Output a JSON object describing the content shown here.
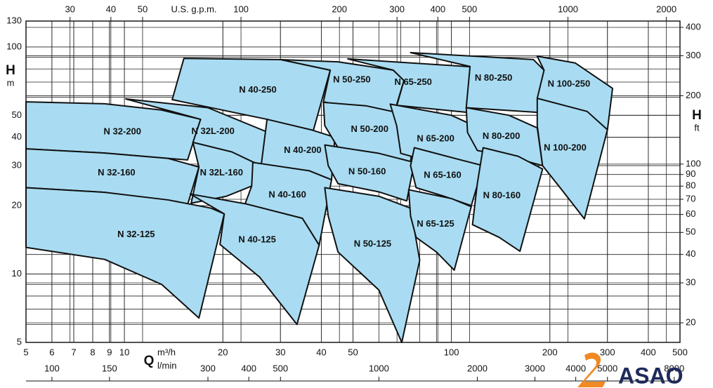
{
  "chart_data": {
    "type": "region",
    "log_scale": true,
    "grid": true,
    "minor_grid": true,
    "xlim": [
      5,
      500
    ],
    "xticks": [
      5,
      6,
      7,
      8,
      9,
      10,
      20,
      30,
      40,
      50,
      100,
      200,
      300,
      400,
      500
    ],
    "ylim": [
      5,
      130
    ],
    "yticks": [
      5,
      10,
      20,
      30,
      40,
      50,
      100,
      130
    ],
    "y2lim": [
      16.4,
      426.5
    ],
    "y2ticks": [
      20,
      30,
      40,
      50,
      60,
      70,
      80,
      90,
      100,
      200,
      300,
      400
    ],
    "x2lim": [
      22.0,
      2201
    ],
    "x2ticks": [
      30,
      40,
      50,
      100,
      200,
      300,
      400,
      500,
      1000,
      2000
    ],
    "x3lim": [
      83.3,
      8333
    ],
    "x3ticks": [
      100,
      150,
      300,
      400,
      500,
      1000,
      2000,
      3000,
      4000,
      5000,
      8000
    ],
    "x_label": "Q",
    "x_unit": "m³/h",
    "x3_unit": "l/min",
    "x2_unit": "U.S. g.p.m.",
    "y_label": "H",
    "y_unit": "m",
    "y2_label": "H",
    "y2_unit": "ft",
    "logo": "ASAO",
    "series": [
      {
        "name": "N 32-200",
        "color": "#a9dcf2",
        "x": [
          5,
          8.7,
          13,
          17.1,
          15.6,
          13.6,
          8.7,
          5
        ],
        "values": [
          57.3,
          56.2,
          52.7,
          48,
          31.8,
          32.3,
          34.1,
          35.6
        ]
      },
      {
        "name": "N 32-160",
        "color": "#a9dcf2",
        "x": [
          5,
          8.7,
          13.6,
          16.9,
          15.6,
          8.7,
          5
        ],
        "values": [
          35.6,
          34.1,
          32.3,
          29.6,
          20.2,
          22.9,
          24
        ]
      },
      {
        "name": "N 32-125",
        "color": "#a9dcf2",
        "x": [
          5,
          8.7,
          13.6,
          18.4,
          20.2,
          16.9,
          13,
          8.7,
          5
        ],
        "values": [
          24,
          22.9,
          21.2,
          19.5,
          18.4,
          6.4,
          9,
          11.6,
          13.1
        ]
      },
      {
        "name": "N 32L-200",
        "color": "#a9dcf2",
        "x": [
          10.1,
          18,
          28,
          26.2,
          21.3,
          16.2,
          17.1
        ],
        "values": [
          59,
          54,
          41.6,
          30.2,
          33.6,
          38,
          48
        ]
      },
      {
        "name": "N 32L-160",
        "color": "#a9dcf2",
        "x": [
          16.2,
          21.3,
          25.5,
          24.5,
          20.5,
          16,
          16.9
        ],
        "values": [
          38,
          34.5,
          30.5,
          24.4,
          22,
          20.5,
          29.6
        ]
      },
      {
        "name": "N 40-250",
        "color": "#a9dcf2",
        "x": [
          14,
          15.2,
          30.1,
          42.6,
          37.6,
          27.3
        ],
        "values": [
          58.6,
          89,
          87.9,
          79,
          41.6,
          48
        ]
      },
      {
        "name": "N 40-200",
        "color": "#a9dcf2",
        "x": [
          27.3,
          37.6,
          44,
          43,
          36.7,
          26.2
        ],
        "values": [
          48,
          43,
          40,
          26,
          28.5,
          30.2
        ]
      },
      {
        "name": "N 40-160",
        "color": "#a9dcf2",
        "x": [
          24.7,
          36.7,
          43,
          39.4,
          35,
          23.4,
          24.5
        ],
        "values": [
          31,
          28.5,
          26,
          13.4,
          17.6,
          20.4,
          24.4
        ]
      },
      {
        "name": "N 40-125",
        "color": "#a9dcf2",
        "x": [
          15.9,
          23.4,
          35,
          39.4,
          33.7,
          25.9,
          19.6,
          20.2
        ],
        "values": [
          22.5,
          20.4,
          17.6,
          13.4,
          6,
          9.7,
          13.5,
          18.4
        ]
      },
      {
        "name": "N 50-250",
        "color": "#a9dcf2",
        "x": [
          30.1,
          45,
          66.4,
          71.6,
          66.4,
          40.6,
          42.6
        ],
        "values": [
          87.9,
          86,
          79,
          71.1,
          49.8,
          57.3,
          79
        ]
      },
      {
        "name": "N 50-200",
        "color": "#a9dcf2",
        "x": [
          40.6,
          55,
          70,
          77,
          75,
          60,
          45,
          41
        ],
        "values": [
          57,
          55,
          51,
          46,
          31,
          33,
          36,
          45
        ]
      },
      {
        "name": "N 50-160",
        "color": "#a9dcf2",
        "x": [
          41,
          60,
          77,
          73,
          60,
          45,
          42
        ],
        "values": [
          37,
          34,
          31,
          21,
          23,
          25,
          30
        ]
      },
      {
        "name": "N 50-125",
        "color": "#a9dcf2",
        "x": [
          41,
          60,
          75,
          80,
          70.5,
          60,
          45,
          42
        ],
        "values": [
          24,
          22,
          19.5,
          11.5,
          5,
          8.5,
          12.5,
          18
        ]
      },
      {
        "name": "N 65-250",
        "color": "#a9dcf2",
        "x": [
          48.2,
          114,
          111.7,
          68.1,
          71.6,
          66.4
        ],
        "values": [
          88.6,
          81.8,
          51.5,
          55.3,
          71.1,
          79
        ]
      },
      {
        "name": "N 65-200",
        "color": "#a9dcf2",
        "x": [
          65,
          100,
          130,
          120,
          95,
          70,
          68
        ],
        "values": [
          56,
          50,
          42,
          27,
          30,
          34,
          45
        ]
      },
      {
        "name": "N 65-160",
        "color": "#a9dcf2",
        "x": [
          77,
          105,
          125,
          115,
          95,
          78,
          75
        ],
        "values": [
          36,
          32,
          30,
          20,
          22,
          24,
          30
        ]
      },
      {
        "name": "N 65-125",
        "color": "#a9dcf2",
        "x": [
          74,
          100,
          115,
          102,
          90,
          78,
          75
        ],
        "values": [
          23.5,
          21.5,
          19.8,
          10.4,
          12.5,
          14.5,
          18
        ]
      },
      {
        "name": "N 80-250",
        "color": "#a9dcf2",
        "x": [
          75,
          178,
          192,
          183,
          111,
          114
        ],
        "values": [
          94.4,
          88,
          79,
          51.5,
          54,
          82
        ]
      },
      {
        "name": "N 80-200",
        "color": "#a9dcf2",
        "x": [
          111,
          150,
          183,
          190,
          150,
          120,
          112
        ],
        "values": [
          54,
          50,
          44,
          30,
          33,
          35,
          42
        ]
      },
      {
        "name": "N 80-160",
        "color": "#a9dcf2",
        "x": [
          125,
          160,
          190,
          162,
          140,
          116,
          120
        ],
        "values": [
          36,
          33,
          29,
          12.6,
          14.5,
          16.5,
          25
        ]
      },
      {
        "name": "N 100-250",
        "color": "#a9dcf2",
        "x": [
          183,
          239,
          311,
          300,
          183,
          192
        ],
        "values": [
          91,
          85,
          65.7,
          43.2,
          59.4,
          79
        ]
      },
      {
        "name": "N 100-200",
        "color": "#a9dcf2",
        "x": [
          183,
          260,
          300,
          255,
          215,
          190,
          183
        ],
        "values": [
          59.4,
          52,
          43.2,
          17.5,
          24,
          30,
          45
        ]
      }
    ]
  }
}
